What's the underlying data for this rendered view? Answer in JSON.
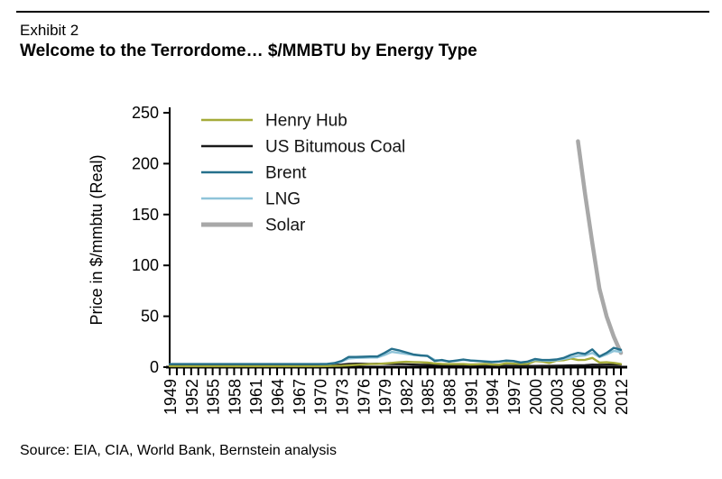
{
  "header": {
    "exhibit": "Exhibit 2",
    "title": "Welcome to the Terrordome… $/MMBTU by Energy Type"
  },
  "footer": {
    "source": "Source: EIA, CIA, World Bank, Bernstein analysis"
  },
  "chart_data": {
    "type": "line",
    "title": "Welcome to the Terrordome… $/MMBTU by Energy Type",
    "xlabel": "",
    "ylabel": "Price in $/mmbtu (Real)",
    "ylim": [
      0,
      250
    ],
    "yticks": [
      0,
      50,
      100,
      150,
      200,
      250
    ],
    "grid": false,
    "legend_position": "top-left",
    "xticks": [
      1949,
      1952,
      1955,
      1958,
      1961,
      1964,
      1967,
      1970,
      1973,
      1976,
      1979,
      1982,
      1985,
      1988,
      1991,
      1994,
      1997,
      2000,
      2003,
      2006,
      2009,
      2012
    ],
    "x": [
      1949,
      1950,
      1951,
      1952,
      1953,
      1954,
      1955,
      1956,
      1957,
      1958,
      1959,
      1960,
      1961,
      1962,
      1963,
      1964,
      1965,
      1966,
      1967,
      1968,
      1969,
      1970,
      1971,
      1972,
      1973,
      1974,
      1975,
      1976,
      1977,
      1978,
      1979,
      1980,
      1981,
      1982,
      1983,
      1984,
      1985,
      1986,
      1987,
      1988,
      1989,
      1990,
      1991,
      1992,
      1993,
      1994,
      1995,
      1996,
      1997,
      1998,
      1999,
      2000,
      2001,
      2002,
      2003,
      2004,
      2005,
      2006,
      2007,
      2008,
      2009,
      2010,
      2011,
      2012
    ],
    "series": [
      {
        "name": "Henry Hub",
        "color": "#a5ab39",
        "width": 2.4,
        "values": [
          1,
          1,
          1,
          1,
          1,
          1,
          1,
          1,
          1,
          1,
          1,
          1,
          1,
          1,
          1,
          1,
          1,
          1,
          1,
          1,
          1,
          1,
          1.1,
          1.2,
          1.4,
          1.8,
          2.2,
          2.6,
          3,
          3.2,
          3.6,
          4.2,
          4.8,
          5.2,
          5,
          4.8,
          4.4,
          3.6,
          3.2,
          3,
          3,
          3,
          2.6,
          2.8,
          3.2,
          2.6,
          2.4,
          3.8,
          3.4,
          3,
          3.2,
          6,
          5.5,
          4.2,
          6.5,
          6.8,
          8.5,
          7,
          7.2,
          9,
          4.5,
          4.8,
          4.2,
          3
        ]
      },
      {
        "name": "US Bitumous Coal",
        "color": "#1a1a1a",
        "width": 2.2,
        "values": [
          2,
          2,
          2,
          2,
          2,
          2,
          2,
          2,
          2,
          2,
          2,
          1.9,
          1.9,
          1.9,
          1.9,
          1.9,
          1.9,
          1.9,
          1.9,
          1.9,
          2,
          2.2,
          2.4,
          2.5,
          2.6,
          3.2,
          3.5,
          3.4,
          3.3,
          3.4,
          3.2,
          3,
          2.9,
          2.8,
          2.6,
          2.4,
          2.3,
          2.1,
          2,
          1.9,
          1.8,
          1.7,
          1.7,
          1.6,
          1.5,
          1.5,
          1.4,
          1.4,
          1.3,
          1.3,
          1.2,
          1.2,
          1.3,
          1.3,
          1.4,
          1.6,
          1.8,
          1.9,
          2,
          2.5,
          2.4,
          2.5,
          2.6,
          2.5
        ]
      },
      {
        "name": "Brent",
        "color": "#26708c",
        "width": 2.4,
        "values": [
          3,
          3,
          3,
          3,
          3,
          3,
          3,
          3,
          3,
          3,
          3,
          3,
          3,
          3,
          3,
          3,
          3,
          3,
          3,
          3,
          3,
          3,
          3.2,
          4,
          6,
          10,
          10,
          10.2,
          10.5,
          10.5,
          14,
          18,
          16.5,
          14.5,
          12.5,
          11.5,
          11,
          6,
          7,
          5.5,
          6.5,
          7.5,
          6.5,
          6,
          5.5,
          5,
          5.5,
          6.5,
          6,
          4.5,
          5.5,
          8,
          7,
          7,
          7.5,
          9,
          12,
          14,
          13,
          17.5,
          10.5,
          14,
          19,
          17
        ]
      },
      {
        "name": "LNG",
        "color": "#8fc4d9",
        "width": 2.4,
        "values": [
          null,
          null,
          null,
          null,
          null,
          null,
          null,
          null,
          null,
          null,
          null,
          null,
          null,
          null,
          null,
          null,
          null,
          null,
          null,
          null,
          null,
          3,
          3.2,
          3.8,
          5.5,
          8.5,
          9,
          9.2,
          9.5,
          9.5,
          12,
          15,
          14,
          13,
          12,
          11.5,
          11,
          7,
          6.5,
          5.8,
          6.2,
          7,
          6.6,
          6.2,
          5.8,
          5.4,
          5.6,
          6.2,
          5.8,
          4.8,
          5.2,
          7,
          6.5,
          6.2,
          6.8,
          8,
          9.5,
          11,
          11.5,
          14,
          9.8,
          12.5,
          16,
          15
        ]
      },
      {
        "name": "Solar",
        "color": "#a8a8a8",
        "width": 4.5,
        "values": [
          null,
          null,
          null,
          null,
          null,
          null,
          null,
          null,
          null,
          null,
          null,
          null,
          null,
          null,
          null,
          null,
          null,
          null,
          null,
          null,
          null,
          null,
          null,
          null,
          null,
          null,
          null,
          null,
          null,
          null,
          null,
          null,
          null,
          null,
          null,
          null,
          null,
          null,
          null,
          null,
          null,
          null,
          null,
          null,
          null,
          null,
          null,
          null,
          null,
          null,
          null,
          null,
          null,
          null,
          null,
          null,
          null,
          222,
          170,
          122,
          77,
          50,
          30,
          14
        ]
      }
    ]
  }
}
